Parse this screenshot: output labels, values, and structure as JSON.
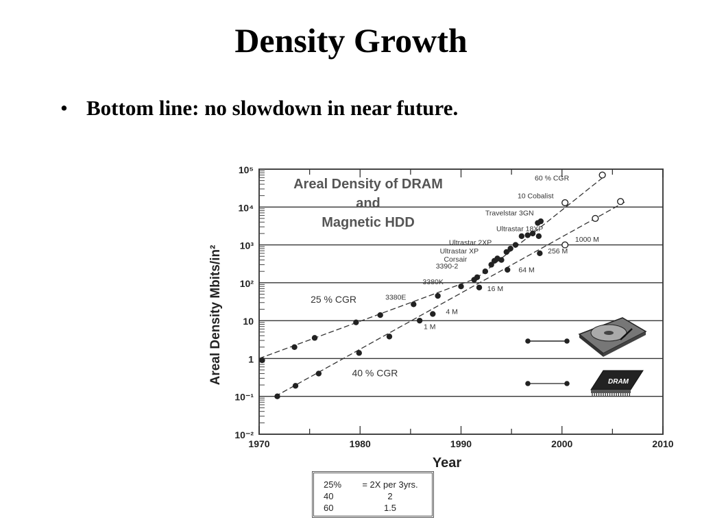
{
  "slide": {
    "title": "Density Growth",
    "bullet_marker": "•",
    "bullet": "Bottom line: no slowdown in near future."
  },
  "chart_data": {
    "type": "scatter",
    "title_lines": [
      "Areal Density of DRAM",
      "and",
      "Magnetic HDD"
    ],
    "xlabel": "Year",
    "ylabel": "Areal Density Mbits/in²",
    "xlim": [
      1970,
      2010
    ],
    "ylim": [
      0.01,
      100000
    ],
    "yscale": "log",
    "grid": true,
    "x_ticks": [
      {
        "v": 1970,
        "label": "1970"
      },
      {
        "v": 1980,
        "label": "1980"
      },
      {
        "v": 1990,
        "label": "1990"
      },
      {
        "v": 2000,
        "label": "2000"
      },
      {
        "v": 2010,
        "label": "2010"
      }
    ],
    "y_ticks": [
      {
        "v": 100000,
        "label": "10⁵"
      },
      {
        "v": 10000,
        "label": "10⁴"
      },
      {
        "v": 1000,
        "label": "10³"
      },
      {
        "v": 100,
        "label": "10²"
      },
      {
        "v": 10,
        "label": "10"
      },
      {
        "v": 1,
        "label": "1"
      },
      {
        "v": 0.1,
        "label": "10⁻¹"
      },
      {
        "v": 0.01,
        "label": "10⁻²"
      }
    ],
    "series": [
      {
        "marker": "filled-dot",
        "points": [
          {
            "x": 1970.3,
            "y": 0.9
          },
          {
            "x": 1973.5,
            "y": 2
          },
          {
            "x": 1975.5,
            "y": 3.5
          },
          {
            "x": 1979.6,
            "y": 9
          },
          {
            "x": 1982,
            "y": 14
          },
          {
            "x": 1985.3,
            "y": 27
          },
          {
            "x": 1987.7,
            "y": 45
          },
          {
            "x": 1990,
            "y": 80
          },
          {
            "x": 1991.3,
            "y": 120
          },
          {
            "x": 1991.6,
            "y": 140
          },
          {
            "x": 1992.4,
            "y": 200
          },
          {
            "x": 1993,
            "y": 300
          },
          {
            "x": 1993.3,
            "y": 380
          },
          {
            "x": 1993.6,
            "y": 440
          },
          {
            "x": 1994,
            "y": 400
          },
          {
            "x": 1994.5,
            "y": 650
          },
          {
            "x": 1994.9,
            "y": 800
          },
          {
            "x": 1995.4,
            "y": 1000
          },
          {
            "x": 1996,
            "y": 1700
          },
          {
            "x": 1996.6,
            "y": 1800
          },
          {
            "x": 1997.1,
            "y": 2000
          },
          {
            "x": 1997.6,
            "y": 3800
          },
          {
            "x": 1997.9,
            "y": 4200
          },
          {
            "x": 1997.7,
            "y": 1700
          }
        ]
      },
      {
        "marker": "open-circle",
        "points": [
          {
            "x": 2000.3,
            "y": 1000
          },
          {
            "x": 2000.3,
            "y": 13000
          },
          {
            "x": 2003.3,
            "y": 5000
          },
          {
            "x": 2005.8,
            "y": 14000
          },
          {
            "x": 2004,
            "y": 70000
          }
        ]
      },
      {
        "marker": "filled-dot",
        "points": [
          {
            "x": 1971.8,
            "y": 0.1
          },
          {
            "x": 1973.6,
            "y": 0.19
          },
          {
            "x": 1975.9,
            "y": 0.4
          },
          {
            "x": 1979.9,
            "y": 1.4
          },
          {
            "x": 1982.9,
            "y": 3.8
          },
          {
            "x": 1985.9,
            "y": 10
          },
          {
            "x": 1987.2,
            "y": 15
          },
          {
            "x": 1991.8,
            "y": 75
          },
          {
            "x": 1994.6,
            "y": 220
          },
          {
            "x": 1997.8,
            "y": 600
          }
        ]
      }
    ],
    "trend_lines": [
      {
        "label": "25 % CGR",
        "from": {
          "x": 1970,
          "y": 1
        },
        "to": {
          "x": 1991.5,
          "y": 130
        }
      },
      {
        "label": "60 % CGR",
        "from": {
          "x": 1991.5,
          "y": 130
        },
        "to": {
          "x": 2004.3,
          "y": 68000
        }
      },
      {
        "label": "40 % CGR",
        "from": {
          "x": 1971.6,
          "y": 0.1
        },
        "to": {
          "x": 2006.2,
          "y": 13500
        }
      }
    ],
    "annotations": [
      {
        "text": "60 % CGR",
        "x": 1997.3,
        "y": 50000
      },
      {
        "text": "10 Cobalist",
        "x": 1995.6,
        "y": 17000
      },
      {
        "text": "Travelstar 3GN",
        "x": 1992.4,
        "y": 6000
      },
      {
        "text": "Ultrastar 18XP",
        "x": 1993.5,
        "y": 2300
      },
      {
        "text": "Ultrastar 2XP",
        "x": 1988.8,
        "y": 1000
      },
      {
        "text": "Ultrastar XP",
        "x": 1987.9,
        "y": 600
      },
      {
        "text": "Corsair",
        "x": 1988.3,
        "y": 360
      },
      {
        "text": "3390-2",
        "x": 1987.5,
        "y": 240
      },
      {
        "text": "3380K",
        "x": 1986.2,
        "y": 92
      },
      {
        "text": "3380E",
        "x": 1982.5,
        "y": 36
      },
      {
        "text": "1000 M",
        "x": 2001.3,
        "y": 1200
      },
      {
        "text": "256 M",
        "x": 1998.6,
        "y": 600
      },
      {
        "text": "64 M",
        "x": 1995.7,
        "y": 190
      },
      {
        "text": "16 M",
        "x": 1992.6,
        "y": 60
      },
      {
        "text": "4 M",
        "x": 1988.5,
        "y": 15
      },
      {
        "text": "1 M",
        "x": 1986.3,
        "y": 6
      },
      {
        "text": "25 % CGR",
        "x": 1975.1,
        "y": 30
      },
      {
        "text": "40 % CGR",
        "x": 1979.2,
        "y": 0.34
      }
    ],
    "legend_icons": [
      "hard-disk-drive",
      "dram-chip"
    ],
    "legend_icon_label": "DRAM",
    "note_table": [
      [
        "25%",
        "= 2X per 3yrs."
      ],
      [
        "40",
        "2"
      ],
      [
        "60",
        "1.5"
      ]
    ]
  }
}
